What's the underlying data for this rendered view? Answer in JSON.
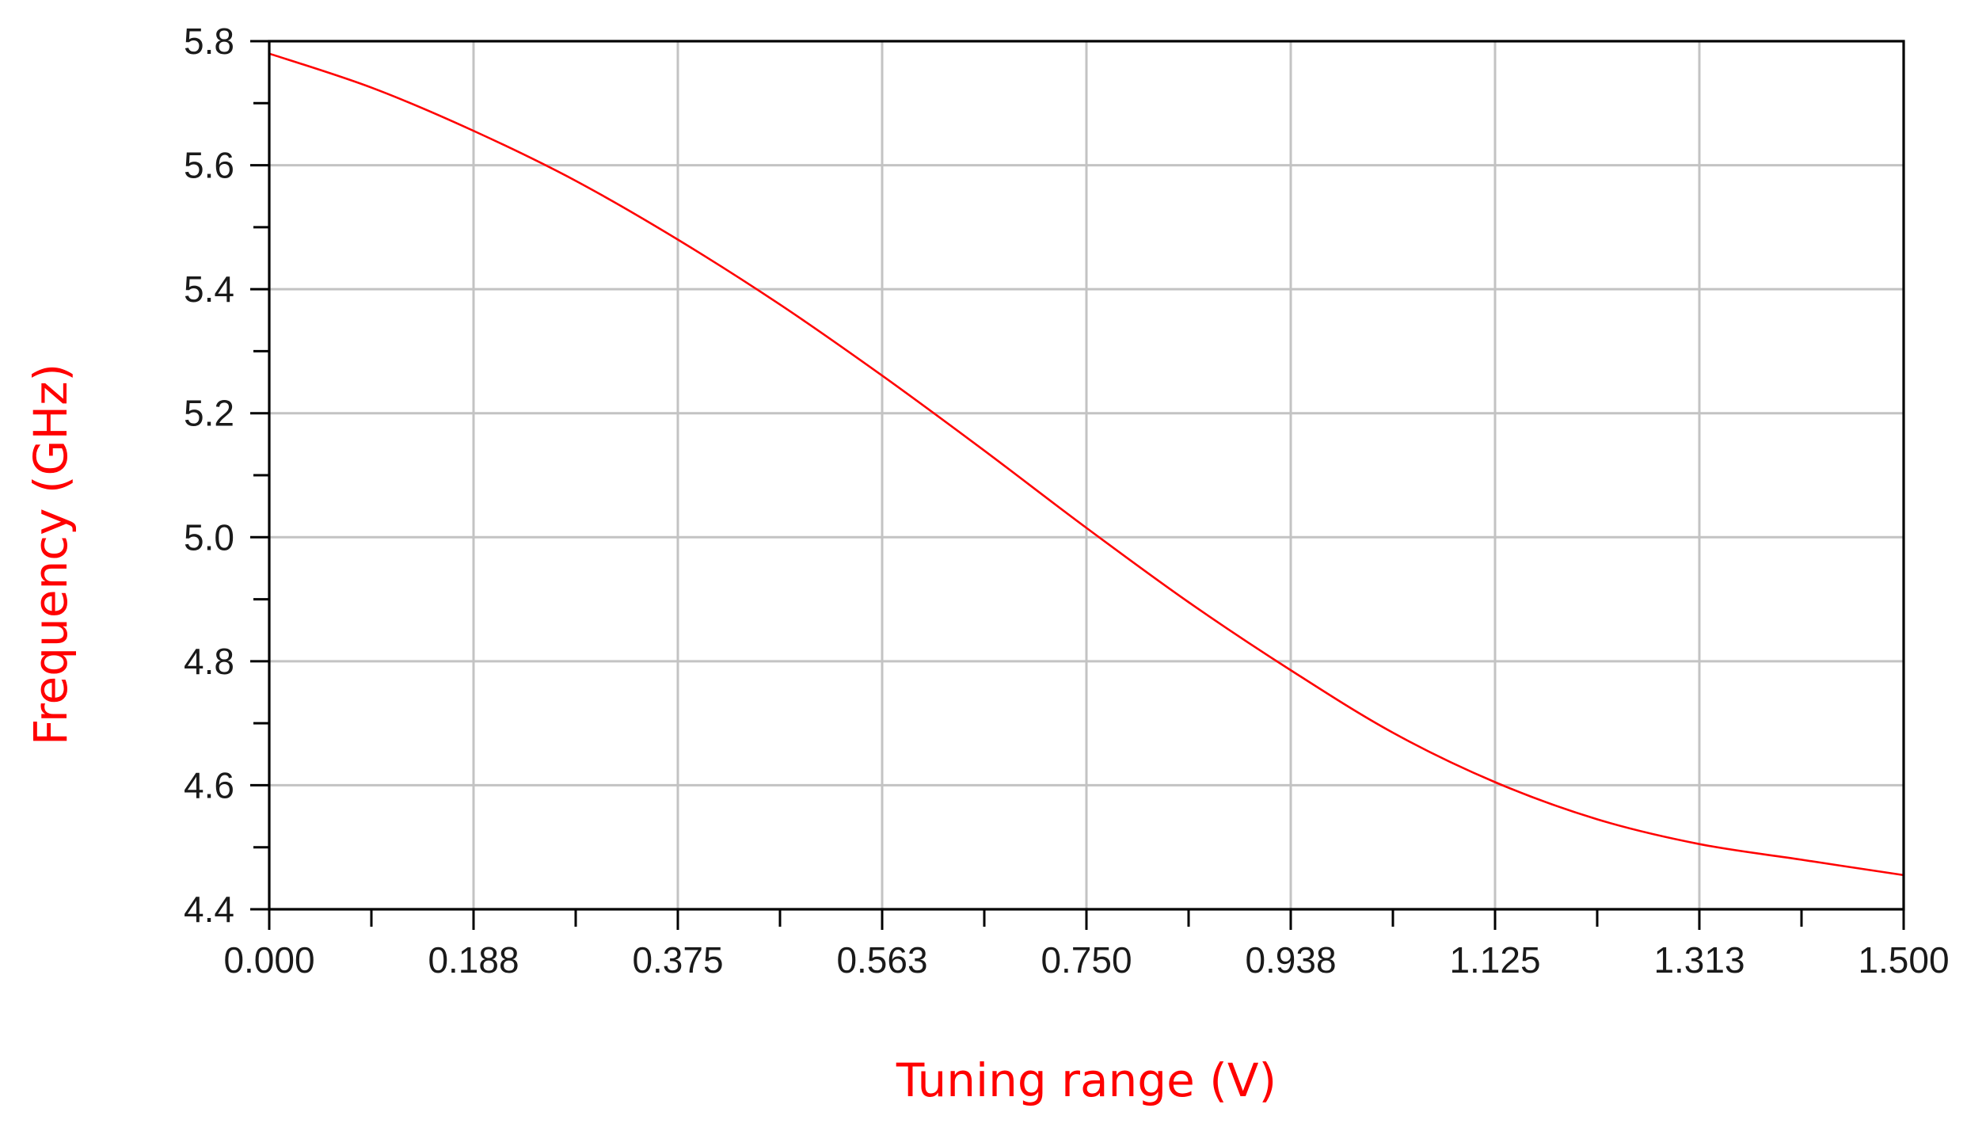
{
  "chart_data": {
    "type": "line",
    "title": "",
    "xlabel": "Tuning range (V)",
    "ylabel": "Frequency (GHz)",
    "label_color": "#ff0000",
    "xlim": [
      0,
      1.5
    ],
    "ylim": [
      4.4,
      5.8
    ],
    "x_ticks": [
      "0.000",
      "0.188",
      "0.375",
      "0.563",
      "0.750",
      "0.938",
      "1.125",
      "1.313",
      "1.500"
    ],
    "y_ticks": [
      "4.4",
      "4.6",
      "4.8",
      "5.0",
      "5.2",
      "5.4",
      "5.6",
      "5.8"
    ],
    "grid": true,
    "series": [
      {
        "color": "#ff0000",
        "x": [
          0.0,
          0.094,
          0.188,
          0.281,
          0.375,
          0.469,
          0.563,
          0.656,
          0.75,
          0.844,
          0.938,
          1.031,
          1.125,
          1.219,
          1.313,
          1.406,
          1.5
        ],
        "y": [
          5.78,
          5.725,
          5.655,
          5.575,
          5.48,
          5.375,
          5.26,
          5.14,
          5.015,
          4.895,
          4.785,
          4.685,
          4.605,
          4.545,
          4.505,
          4.48,
          4.455
        ]
      }
    ]
  }
}
